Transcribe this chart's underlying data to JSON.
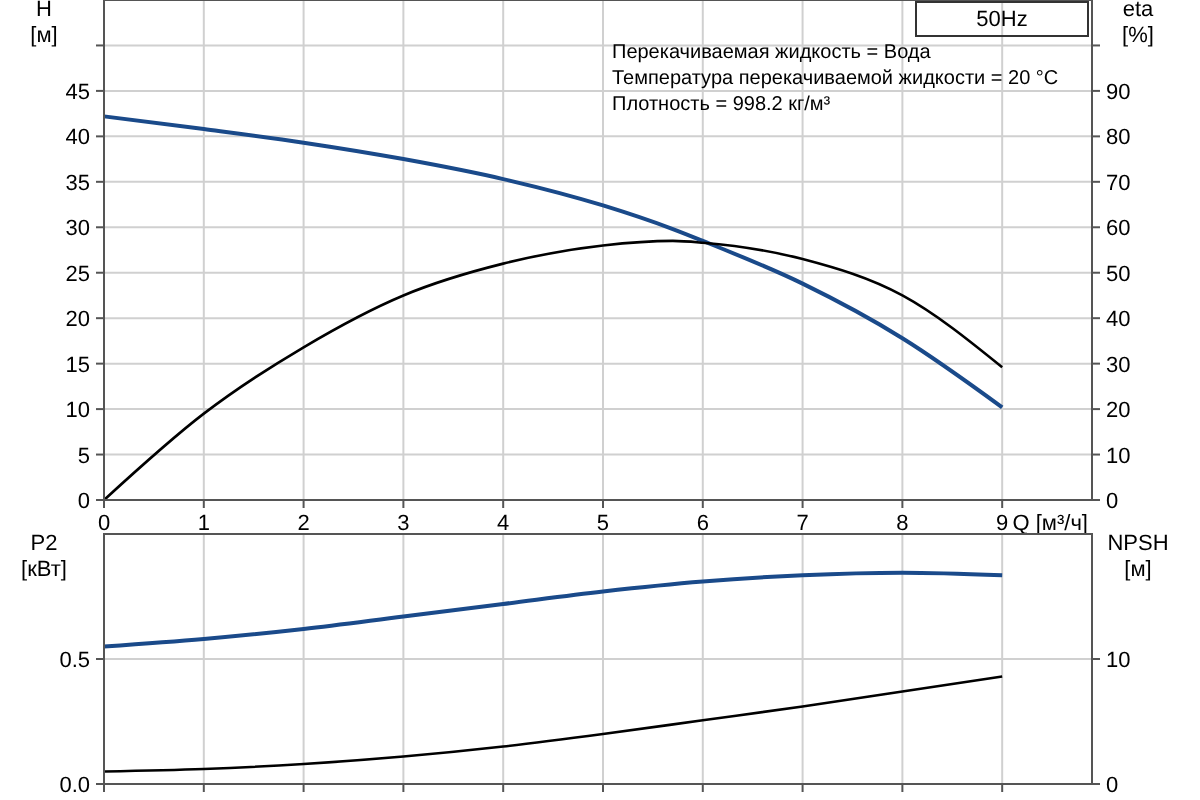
{
  "chart_data": [
    {
      "type": "line",
      "title": "50Hz",
      "xlabel": "Q [м³/ч]",
      "ylabel": "H [м]",
      "y2label": "eta [%]",
      "annotations": [
        "Перекачиваемая жидкость = Вода",
        "Температура перекачиваемой жидкости = 20 °C",
        "Плотность = 998.2 кг/м³"
      ],
      "x": [
        0,
        1,
        2,
        3,
        4,
        5,
        5.7,
        6,
        7,
        8,
        9
      ],
      "series": [
        {
          "color": "#1a4a8a",
          "values": [
            42.2,
            40.8,
            39.3,
            37.5,
            35.3,
            32.4,
            29.8,
            28.5,
            23.8,
            17.8,
            10.2
          ]
        },
        {
          "color": "#000000",
          "axis": "y2",
          "values": [
            0,
            19,
            33.6,
            45,
            52,
            56,
            57,
            56.6,
            53,
            45,
            29.2
          ]
        }
      ],
      "xlim": [
        0,
        9.9
      ],
      "xticks": [
        0,
        1,
        2,
        3,
        4,
        5,
        6,
        7,
        8,
        9
      ],
      "ylim": [
        0,
        55
      ],
      "yticks": [
        0,
        5,
        10,
        15,
        20,
        25,
        30,
        35,
        40,
        45,
        {
          "value": 50,
          "label": null
        }
      ],
      "y2lim": [
        0,
        110
      ],
      "y2ticks": [
        0,
        10,
        20,
        30,
        40,
        50,
        60,
        70,
        80,
        90,
        {
          "value": 100,
          "label": null
        }
      ],
      "grid": true
    },
    {
      "type": "line",
      "ylabel": "P2 [кВт]",
      "y2label": "NPSH [м]",
      "x": [
        0,
        1,
        2,
        3,
        4,
        5,
        6,
        7,
        8,
        9
      ],
      "series": [
        {
          "color": "#1a4a8a",
          "values": [
            0.55,
            0.58,
            0.62,
            0.67,
            0.72,
            0.77,
            0.81,
            0.835,
            0.845,
            0.835
          ]
        },
        {
          "color": "#000000",
          "axis": "y2",
          "values": [
            1.0,
            1.2,
            1.6,
            2.2,
            3.0,
            4.0,
            5.1,
            6.2,
            7.4,
            8.6
          ]
        }
      ],
      "xlim": [
        0,
        9.9
      ],
      "xticks": [
        {
          "value": 0,
          "label": null
        },
        {
          "value": 1,
          "label": null
        },
        {
          "value": 2,
          "label": null
        },
        {
          "value": 3,
          "label": null
        },
        {
          "value": 4,
          "label": null
        },
        {
          "value": 5,
          "label": null
        },
        {
          "value": 6,
          "label": null
        },
        {
          "value": 7,
          "label": null
        },
        {
          "value": 8,
          "label": null
        },
        {
          "value": 9,
          "label": null
        }
      ],
      "ylim": [
        0,
        1
      ],
      "yticks": [
        {
          "value": 0,
          "label": "0.0"
        },
        0.5
      ],
      "y2lim": [
        0,
        20
      ],
      "y2ticks": [
        0,
        10
      ],
      "tick_labels": "y",
      "grid": true
    }
  ]
}
